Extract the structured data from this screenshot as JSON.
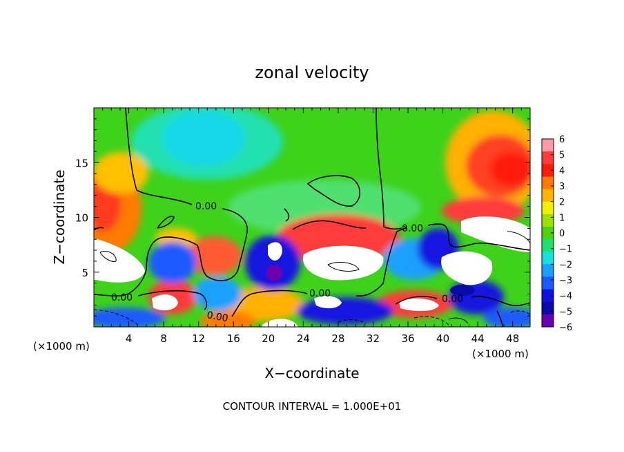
{
  "chart_data": {
    "type": "heatmap",
    "title": "zonal velocity",
    "xlabel": "X−coordinate",
    "ylabel": "Z−coordinate",
    "x_unit_left": "(×1000 m)",
    "x_unit_right": "(×1000 m)",
    "xlim": [
      0,
      50
    ],
    "ylim": [
      0,
      20
    ],
    "x_ticks": [
      4,
      8,
      12,
      16,
      20,
      24,
      28,
      32,
      36,
      40,
      44,
      48
    ],
    "y_ticks": [
      5,
      10,
      15
    ],
    "colorbar": {
      "ticks": [
        6,
        5,
        4,
        3,
        2,
        1,
        0,
        "−1",
        "−2",
        "−3",
        "−4",
        "−5",
        "−6"
      ],
      "colors": [
        "#ff9ba6",
        "#ff3a3a",
        "#ff1a0a",
        "#ff7a00",
        "#ffb400",
        "#f0f000",
        "#9be000",
        "#4fd010",
        "#22e070",
        "#16e0e0",
        "#1aa0ff",
        "#1a5aff",
        "#1212e0",
        "#0a0aa8",
        "#6a00b0"
      ]
    },
    "contour_labels": [
      "0.00",
      "0.00",
      "0.00",
      "0.00",
      "0.00",
      "0.00"
    ],
    "footer": "CONTOUR INTERVAL = 1.000E+01"
  }
}
